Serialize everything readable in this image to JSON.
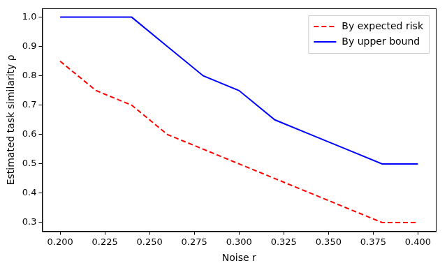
{
  "chart_data": {
    "type": "line",
    "x_label": "Noise r",
    "y_label": "Estimated task similarity ρ",
    "xlim": [
      0.19,
      0.41
    ],
    "ylim": [
      0.27,
      1.03
    ],
    "xticks": [
      {
        "value": 0.2,
        "label": "0.200"
      },
      {
        "value": 0.225,
        "label": "0.225"
      },
      {
        "value": 0.25,
        "label": "0.250"
      },
      {
        "value": 0.275,
        "label": "0.275"
      },
      {
        "value": 0.3,
        "label": "0.300"
      },
      {
        "value": 0.325,
        "label": "0.325"
      },
      {
        "value": 0.35,
        "label": "0.350"
      },
      {
        "value": 0.375,
        "label": "0.375"
      },
      {
        "value": 0.4,
        "label": "0.400"
      }
    ],
    "yticks": [
      0.3,
      0.4,
      0.5,
      0.6,
      0.7,
      0.8,
      0.9,
      {
        "value": 1,
        "label": "1.0"
      }
    ],
    "grid": false,
    "legend": "upper right",
    "x": [
      0.2,
      0.22,
      0.24,
      0.26,
      0.28,
      0.3,
      0.32,
      0.34,
      0.36,
      0.38,
      0.4
    ],
    "series": [
      {
        "name": "By expected risk",
        "color": "#ff0000",
        "line_style": "dashed",
        "values": [
          0.85,
          0.75,
          0.7,
          0.6,
          0.55,
          0.5,
          0.45,
          0.4,
          0.35,
          0.3,
          0.3
        ]
      },
      {
        "name": "By upper bound",
        "color": "#0000ff",
        "line_style": "solid",
        "values": [
          1.0,
          1.0,
          1.0,
          0.9,
          0.8,
          0.75,
          0.65,
          0.6,
          0.55,
          0.5,
          0.5
        ]
      }
    ]
  }
}
